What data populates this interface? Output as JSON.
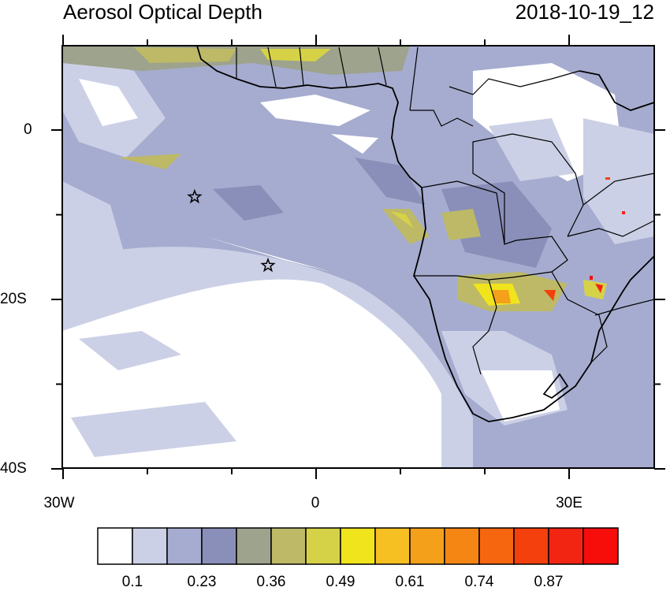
{
  "header": {
    "title": "Aerosol Optical Depth",
    "date": "2018-10-19_12"
  },
  "axes": {
    "lat_labels": [
      "0",
      "20S",
      "40S"
    ],
    "lon_labels": [
      "30W",
      "0",
      "30E"
    ]
  },
  "colorbar": {
    "colors": [
      "#ffffff",
      "#ccd0e6",
      "#a6accf",
      "#8a8fb9",
      "#9da38c",
      "#bdb967",
      "#d6d247",
      "#f0e41c",
      "#f6bf22",
      "#f5a01a",
      "#f68614",
      "#f6660f",
      "#f3400c",
      "#f22513",
      "#f70d0a"
    ],
    "labels": [
      "0.1",
      "0.23",
      "0.36",
      "0.49",
      "0.61",
      "0.74",
      "0.87"
    ]
  },
  "markers": {
    "stars": [
      {
        "name": "star-marker-ascension",
        "lon": -14.4,
        "lat": -7.9
      },
      {
        "name": "star-marker-st-helena",
        "lon": -5.7,
        "lat": -16.0
      }
    ]
  }
}
